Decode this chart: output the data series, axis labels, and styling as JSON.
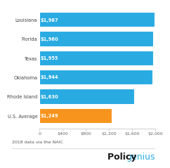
{
  "categories": [
    "Louisiana",
    "Florida",
    "Texas",
    "Oklahoma",
    "Rhode Island",
    "U.S. Average"
  ],
  "values": [
    1987,
    1960,
    1955,
    1944,
    1630,
    1249
  ],
  "labels": [
    "$1,987",
    "$1,960",
    "$1,955",
    "$1,944",
    "$1,630",
    "$1,249"
  ],
  "bar_colors": [
    "#29ABE2",
    "#29ABE2",
    "#29ABE2",
    "#29ABE2",
    "#29ABE2",
    "#F7941D"
  ],
  "xlim": [
    0,
    2000
  ],
  "xticks": [
    0,
    400,
    800,
    1200,
    1600,
    2000
  ],
  "xtick_labels": [
    "0",
    "$400",
    "$800",
    "$1,200",
    "$1,600",
    "$2,000"
  ],
  "footnote": "2018 data via the NAIC",
  "bg_color": "#FFFFFF",
  "cat_fontsize": 4.8,
  "label_fontsize": 4.8,
  "tick_fontsize": 4.5,
  "footnote_fontsize": 4.5,
  "brand_bold": "Policy",
  "brand_light": "genius",
  "brand_fontsize": 9.0,
  "brand_color_bold": "#1a1a1a",
  "brand_color_light": "#29ABE2"
}
